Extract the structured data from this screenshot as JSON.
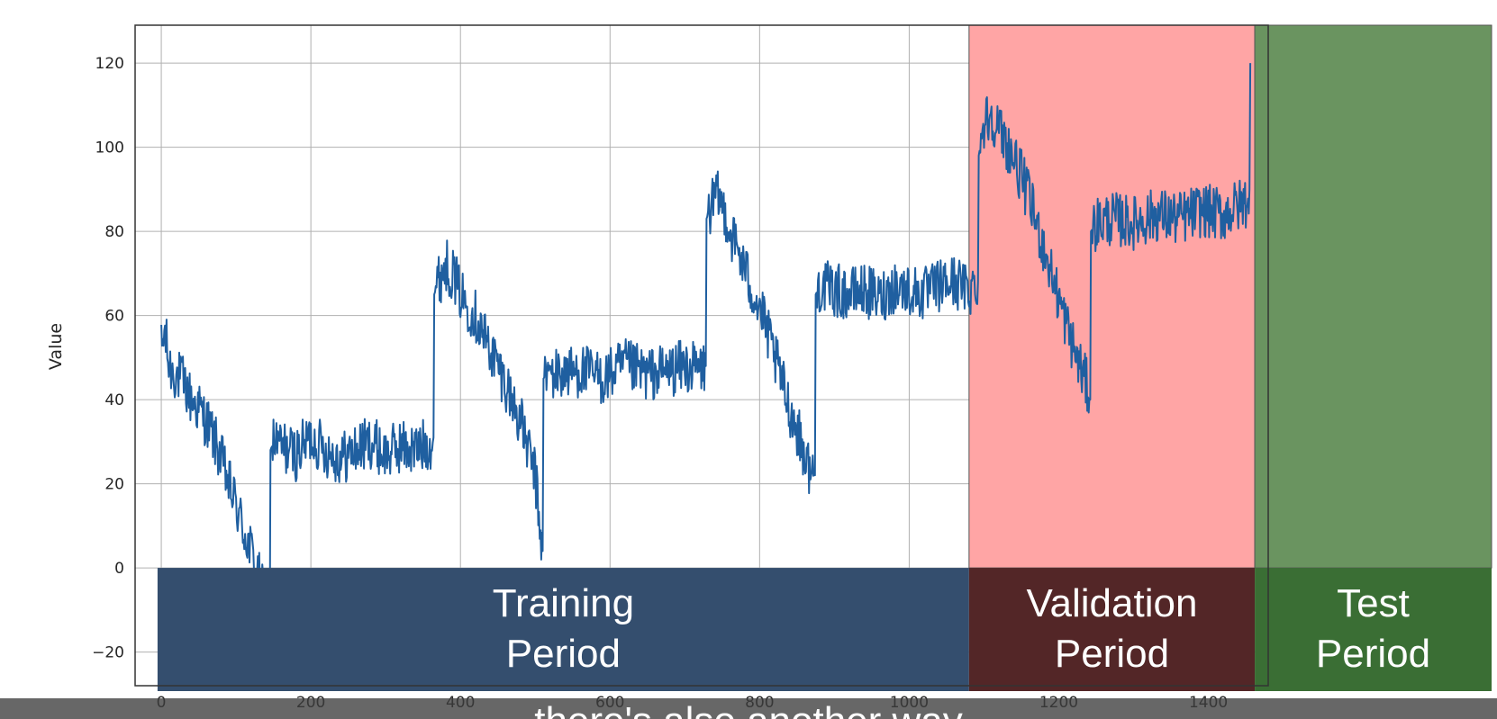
{
  "chart_data": {
    "type": "line",
    "title": "",
    "xlabel": "",
    "ylabel": "Value",
    "xlim": [
      -35,
      1480
    ],
    "ylim": [
      -28,
      129
    ],
    "x_ticks": [
      0,
      200,
      400,
      600,
      800,
      1000,
      1200,
      1400
    ],
    "y_ticks": [
      -20,
      0,
      20,
      40,
      60,
      80,
      100,
      120
    ],
    "grid": true,
    "series_color": "#1f5fa0",
    "series": [
      {
        "name": "",
        "x": [
          0,
          5,
          10,
          20,
          30,
          40,
          50,
          60,
          70,
          80,
          90,
          100,
          110,
          120,
          130,
          140,
          145,
          146,
          150,
          160,
          180,
          200,
          220,
          240,
          260,
          280,
          300,
          320,
          340,
          360,
          364,
          365,
          370,
          380,
          390,
          400,
          420,
          440,
          460,
          480,
          500,
          505,
          510,
          511,
          515,
          530,
          560,
          590,
          620,
          650,
          680,
          700,
          720,
          728,
          729,
          735,
          745,
          755,
          760,
          770,
          780,
          790,
          800,
          810,
          820,
          830,
          840,
          850,
          860,
          870,
          874,
          875,
          880,
          900,
          920,
          940,
          960,
          980,
          1000,
          1020,
          1040,
          1060,
          1080,
          1092,
          1093,
          1100,
          1110,
          1120,
          1130,
          1140,
          1150,
          1160,
          1170,
          1180,
          1190,
          1200,
          1210,
          1220,
          1230,
          1240,
          1242,
          1243,
          1250,
          1270,
          1300,
          1330,
          1360,
          1390,
          1420,
          1440,
          1450,
          1455,
          1456
        ],
        "values": [
          52,
          56,
          48,
          46,
          44,
          40,
          38,
          35,
          31,
          26,
          20,
          15,
          9,
          4,
          -2,
          -9,
          -16,
          28,
          30,
          29,
          27,
          31,
          28,
          26,
          28,
          30,
          27,
          29,
          28,
          30,
          31,
          65,
          68,
          72,
          70,
          65,
          60,
          52,
          44,
          35,
          22,
          12,
          4,
          45,
          46,
          46,
          47,
          45,
          48,
          46,
          47,
          48,
          47,
          48,
          83,
          86,
          88,
          84,
          80,
          76,
          71,
          66,
          62,
          56,
          50,
          44,
          38,
          33,
          27,
          22,
          22,
          65,
          67,
          66,
          65,
          66,
          64,
          67,
          66,
          65,
          67,
          68,
          66,
          68,
          98,
          106,
          108,
          104,
          101,
          97,
          93,
          88,
          82,
          76,
          70,
          64,
          58,
          52,
          47,
          42,
          40,
          80,
          82,
          83,
          82,
          84,
          83,
          85,
          84,
          86,
          87,
          90,
          120
        ]
      }
    ],
    "regions": [
      {
        "label": "Training Period",
        "label_lines": [
          "Training",
          "Period"
        ],
        "x_start": -5,
        "x_end": 1080,
        "highlight_color": "",
        "band_color": "#344e6e"
      },
      {
        "label": "Validation Period",
        "label_lines": [
          "Validation",
          "Period"
        ],
        "x_start": 1080,
        "x_end": 1462,
        "highlight_color": "#ffa5a5",
        "band_color": "#532627"
      },
      {
        "label": "Test Period",
        "label_lines": [
          "Test",
          "Period"
        ],
        "x_start": 1462,
        "x_end": 1480,
        "highlight_color": "#6a9460",
        "band_color": "#3a6e34"
      }
    ]
  },
  "caption": {
    "text": "there's also another way"
  }
}
